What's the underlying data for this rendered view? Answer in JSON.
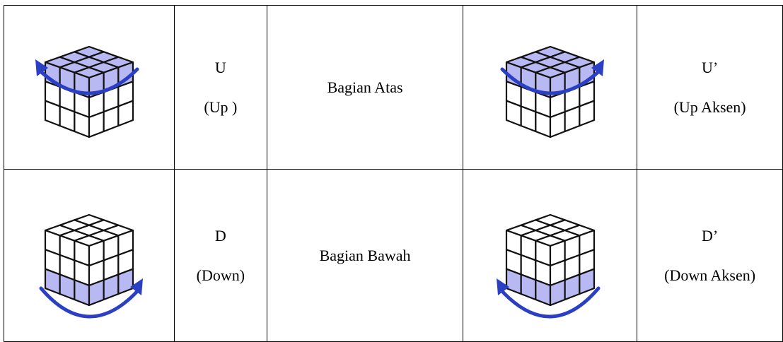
{
  "table": {
    "rows": [
      {
        "move": [
          "U",
          "(Up )"
        ],
        "part": "Bagian Atas",
        "inverse": [
          "U’",
          "(Up Aksen)"
        ]
      },
      {
        "move": [
          "D",
          "(Down)"
        ],
        "part": "Bagian Bawah",
        "inverse": [
          "D’",
          "(Down Aksen)"
        ]
      }
    ]
  }
}
